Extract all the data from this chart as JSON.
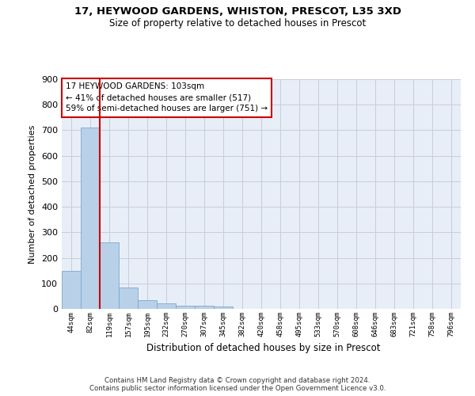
{
  "title1": "17, HEYWOOD GARDENS, WHISTON, PRESCOT, L35 3XD",
  "title2": "Size of property relative to detached houses in Prescot",
  "xlabel": "Distribution of detached houses by size in Prescot",
  "ylabel": "Number of detached properties",
  "annotation_line1": "17 HEYWOOD GARDENS: 103sqm",
  "annotation_line2": "← 41% of detached houses are smaller (517)",
  "annotation_line3": "59% of semi-detached houses are larger (751) →",
  "footer1": "Contains HM Land Registry data © Crown copyright and database right 2024.",
  "footer2": "Contains public sector information licensed under the Open Government Licence v3.0.",
  "bar_color": "#b8d0e8",
  "bar_edge_color": "#7aaad0",
  "background_color": "#e8eef8",
  "grid_color": "#c8ccd8",
  "red_line_color": "#cc0000",
  "annotation_box_edge_color": "#cc0000",
  "categories": [
    "44sqm",
    "82sqm",
    "119sqm",
    "157sqm",
    "195sqm",
    "232sqm",
    "270sqm",
    "307sqm",
    "345sqm",
    "382sqm",
    "420sqm",
    "458sqm",
    "495sqm",
    "533sqm",
    "570sqm",
    "608sqm",
    "646sqm",
    "683sqm",
    "721sqm",
    "758sqm",
    "796sqm"
  ],
  "values": [
    148,
    710,
    262,
    85,
    35,
    22,
    13,
    13,
    10,
    0,
    0,
    0,
    0,
    0,
    0,
    0,
    0,
    0,
    0,
    0,
    0
  ],
  "red_line_x": 1.5,
  "ylim": [
    0,
    900
  ],
  "yticks": [
    0,
    100,
    200,
    300,
    400,
    500,
    600,
    700,
    800,
    900
  ]
}
